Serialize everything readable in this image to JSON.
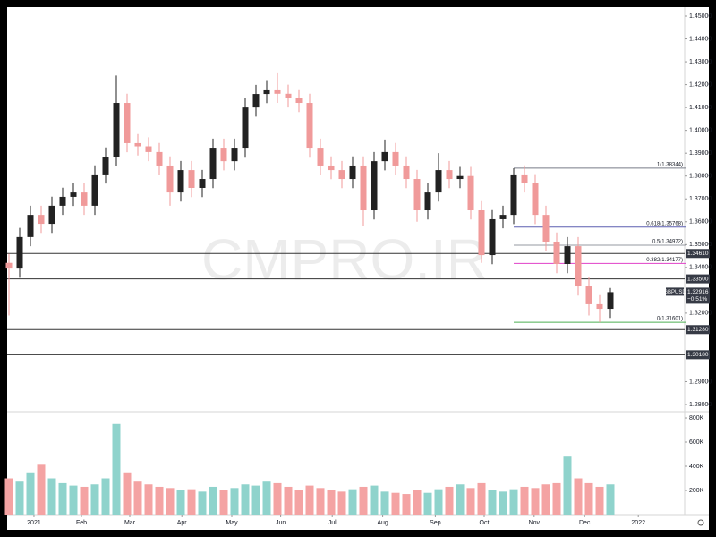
{
  "chart_data": {
    "type": "candlestick",
    "symbol": "GBPUSD",
    "last_price": "1.32916",
    "change": "−0.51%",
    "watermark": "CMPRO.IR",
    "up_color": "#222222",
    "down_color": "#f09a9a",
    "volume_up_color": "#8fd3cc",
    "volume_down_color": "#f4a3a3",
    "categories": [
      null,
      null,
      null,
      null,
      null,
      null,
      null,
      null,
      null,
      null,
      null,
      null,
      null,
      null,
      null,
      null,
      null,
      null,
      null,
      null,
      null,
      null,
      null,
      null,
      null,
      null,
      null,
      null,
      null,
      null,
      null,
      null,
      null,
      null,
      null,
      null,
      null,
      null,
      null,
      null,
      null,
      null,
      null,
      null,
      null,
      null,
      null,
      null,
      null,
      null,
      null,
      null,
      null,
      null,
      null,
      null,
      null
    ],
    "ohlc": [
      [
        1.342,
        1.346,
        1.319,
        1.3395
      ],
      [
        1.3395,
        1.3573,
        1.3355,
        1.3533
      ],
      [
        1.3533,
        1.367,
        1.3493,
        1.363
      ],
      [
        1.363,
        1.367,
        1.3551,
        1.3591
      ],
      [
        1.3591,
        1.371,
        1.3551,
        1.367
      ],
      [
        1.367,
        1.3749,
        1.363,
        1.3709
      ],
      [
        1.3709,
        1.3768,
        1.3669,
        1.3728
      ],
      [
        1.3728,
        1.3768,
        1.363,
        1.367
      ],
      [
        1.367,
        1.3847,
        1.363,
        1.3807
      ],
      [
        1.3807,
        1.3925,
        1.3767,
        1.3885
      ],
      [
        1.3885,
        1.424,
        1.3845,
        1.412
      ],
      [
        1.412,
        1.416,
        1.3904,
        1.3944
      ],
      [
        1.3944,
        1.3984,
        1.389,
        1.393
      ],
      [
        1.393,
        1.397,
        1.3865,
        1.3905
      ],
      [
        1.3905,
        1.3945,
        1.3806,
        1.3846
      ],
      [
        1.3846,
        1.3886,
        1.367,
        1.3728
      ],
      [
        1.3728,
        1.3866,
        1.3688,
        1.3826
      ],
      [
        1.3826,
        1.3866,
        1.3708,
        1.3748
      ],
      [
        1.3748,
        1.3827,
        1.3708,
        1.3787
      ],
      [
        1.3787,
        1.3964,
        1.3747,
        1.3924
      ],
      [
        1.3924,
        1.3964,
        1.3825,
        1.3865
      ],
      [
        1.3865,
        1.3964,
        1.3825,
        1.3924
      ],
      [
        1.3924,
        1.414,
        1.3884,
        1.41
      ],
      [
        1.41,
        1.4199,
        1.406,
        1.4159
      ],
      [
        1.4159,
        1.422,
        1.4119,
        1.4179
      ],
      [
        1.4179,
        1.425,
        1.412,
        1.416
      ],
      [
        1.416,
        1.42,
        1.41,
        1.414
      ],
      [
        1.414,
        1.418,
        1.408,
        1.412
      ],
      [
        1.412,
        1.416,
        1.3884,
        1.3924
      ],
      [
        1.3924,
        1.3964,
        1.3806,
        1.3846
      ],
      [
        1.3846,
        1.3886,
        1.3786,
        1.3826
      ],
      [
        1.3826,
        1.3866,
        1.3747,
        1.3787
      ],
      [
        1.3787,
        1.3886,
        1.3747,
        1.3846
      ],
      [
        1.3846,
        1.3886,
        1.358,
        1.365
      ],
      [
        1.365,
        1.3905,
        1.361,
        1.3865
      ],
      [
        1.3865,
        1.396,
        1.3825,
        1.3905
      ],
      [
        1.3905,
        1.3945,
        1.3806,
        1.3846
      ],
      [
        1.3846,
        1.3886,
        1.3747,
        1.3787
      ],
      [
        1.3787,
        1.3827,
        1.36,
        1.365
      ],
      [
        1.365,
        1.3768,
        1.361,
        1.3728
      ],
      [
        1.3728,
        1.39,
        1.3688,
        1.3826
      ],
      [
        1.3826,
        1.3866,
        1.3747,
        1.3787
      ],
      [
        1.3787,
        1.384,
        1.3747,
        1.38
      ],
      [
        1.38,
        1.384,
        1.361,
        1.365
      ],
      [
        1.365,
        1.369,
        1.342,
        1.3454
      ],
      [
        1.3454,
        1.3651,
        1.3414,
        1.3611
      ],
      [
        1.3611,
        1.367,
        1.3571,
        1.363
      ],
      [
        1.363,
        1.3834,
        1.359,
        1.3807
      ],
      [
        1.3807,
        1.3847,
        1.3728,
        1.3768
      ],
      [
        1.3768,
        1.3808,
        1.359,
        1.363
      ],
      [
        1.363,
        1.367,
        1.3473,
        1.3513
      ],
      [
        1.3513,
        1.3553,
        1.3375,
        1.3415
      ],
      [
        1.3415,
        1.3533,
        1.3375,
        1.3493
      ],
      [
        1.3493,
        1.3533,
        1.3277,
        1.3317
      ],
      [
        1.3317,
        1.3357,
        1.319,
        1.3239
      ],
      [
        1.3239,
        1.3279,
        1.316,
        1.3219
      ],
      [
        1.3219,
        1.331,
        1.3179,
        1.3292
      ]
    ],
    "volume": [
      300000,
      280000,
      350000,
      420000,
      300000,
      260000,
      240000,
      230000,
      250000,
      300000,
      750000,
      350000,
      280000,
      250000,
      230000,
      220000,
      200000,
      210000,
      190000,
      230000,
      200000,
      220000,
      250000,
      240000,
      280000,
      260000,
      230000,
      200000,
      240000,
      220000,
      200000,
      190000,
      210000,
      230000,
      240000,
      190000,
      180000,
      170000,
      200000,
      180000,
      210000,
      230000,
      250000,
      220000,
      260000,
      200000,
      190000,
      210000,
      230000,
      220000,
      250000,
      260000,
      480000,
      300000,
      260000,
      230000,
      250000
    ],
    "ylim": [
      1.27687,
      1.45392
    ],
    "yticks": [
      {
        "value": 1.45,
        "label": "1.45000"
      },
      {
        "value": 1.44,
        "label": "1.44000"
      },
      {
        "value": 1.43,
        "label": "1.43000"
      },
      {
        "value": 1.42,
        "label": "1.42000"
      },
      {
        "value": 1.41,
        "label": "1.41000"
      },
      {
        "value": 1.4,
        "label": "1.40000"
      },
      {
        "value": 1.39,
        "label": "1.39000"
      },
      {
        "value": 1.38,
        "label": "1.38000"
      },
      {
        "value": 1.37,
        "label": "1.37000"
      },
      {
        "value": 1.36,
        "label": "1.36000"
      },
      {
        "value": 1.35,
        "label": "1.35000"
      },
      {
        "value": 1.34,
        "label": "1.34000"
      },
      {
        "value": 1.32,
        "label": "1.32000"
      },
      {
        "value": 1.29,
        "label": "1.29000"
      },
      {
        "value": 1.28,
        "label": "1.28000"
      }
    ],
    "vlim": [
      0,
      852000
    ],
    "vticks": [
      {
        "value": 200000,
        "label": "200K"
      },
      {
        "value": 400000,
        "label": "400K"
      },
      {
        "value": 600000,
        "label": "600K"
      },
      {
        "value": 800000,
        "label": "800K"
      }
    ],
    "xticks": [
      {
        "value": 2.33,
        "label": "2021"
      },
      {
        "value": 6.75,
        "label": "Feb"
      },
      {
        "value": 11.25,
        "label": "Mar"
      },
      {
        "value": 16.1,
        "label": "Apr"
      },
      {
        "value": 20.75,
        "label": "May"
      },
      {
        "value": 25.3,
        "label": "Jun"
      },
      {
        "value": 30.1,
        "label": "Jul"
      },
      {
        "value": 34.8,
        "label": "Aug"
      },
      {
        "value": 39.7,
        "label": "Sep"
      },
      {
        "value": 44.25,
        "label": "Oct"
      },
      {
        "value": 48.9,
        "label": "Nov"
      },
      {
        "value": 53.6,
        "label": "Dec"
      },
      {
        "value": 58.6,
        "label": "2022"
      }
    ],
    "levels": [
      {
        "value": 1.3461,
        "label": "1.34610"
      },
      {
        "value": 1.335,
        "label": "1.33500"
      },
      {
        "value": 1.3128,
        "label": "1.31280"
      },
      {
        "value": 1.3018,
        "label": "1.30180"
      }
    ],
    "fib": [
      {
        "value": 1.38344,
        "label": "1(1.38344)",
        "color": "#787b86"
      },
      {
        "value": 1.35768,
        "label": "0.618(1.35768)",
        "color": "#5b5fb0"
      },
      {
        "value": 1.34972,
        "label": "0.5(1.34972)",
        "color": "#9598a1"
      },
      {
        "value": 1.34177,
        "label": "0.382(1.34177)",
        "color": "#e040c8"
      },
      {
        "value": 1.31601,
        "label": "0(1.31601)",
        "color": "#4caf50"
      }
    ]
  }
}
